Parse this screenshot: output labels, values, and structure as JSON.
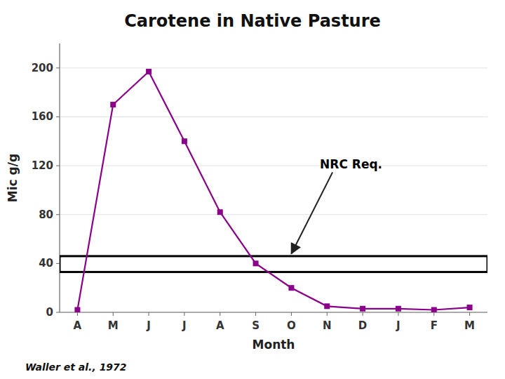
{
  "chart_data": {
    "type": "line",
    "title": "Carotene in Native Pasture",
    "x_label": "Month",
    "y_label": "Mic g/g",
    "categories": [
      "A",
      "M",
      "J",
      "J",
      "A",
      "S",
      "O",
      "N",
      "D",
      "J",
      "F",
      "M"
    ],
    "values": [
      2,
      170,
      197,
      140,
      82,
      40,
      20,
      5,
      3,
      3,
      2,
      4
    ],
    "color": "#8B008B",
    "marker": "square",
    "ylim": [
      0,
      220
    ],
    "yticks": [
      0,
      40,
      80,
      120,
      160,
      200
    ],
    "grid": true,
    "bands": [
      {
        "from": 33,
        "to": 46
      }
    ],
    "annotations": [
      {
        "text": "NRC Req.",
        "x": 6.0,
        "y": 48,
        "text_x": 6.8,
        "text_y": 118
      }
    ],
    "source": "Waller et al., 1972"
  }
}
